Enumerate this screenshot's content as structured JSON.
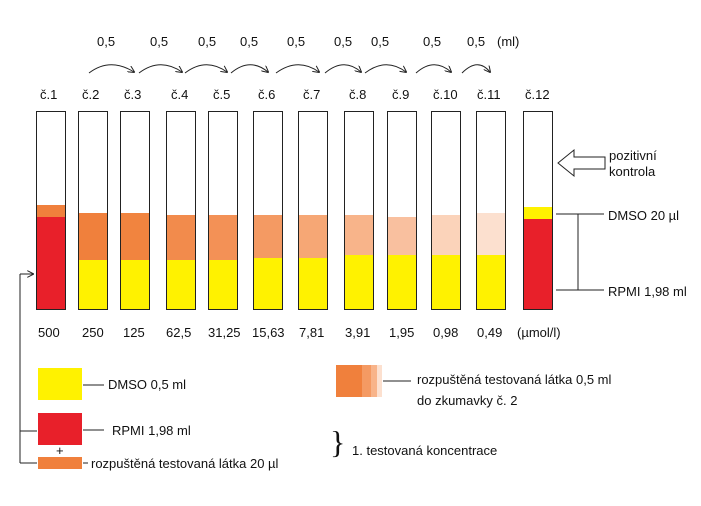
{
  "transfer": {
    "volumes": [
      "0,5",
      "0,5",
      "0,5",
      "0,5",
      "0,5",
      "0,5",
      "0,5",
      "0,5",
      "0,5"
    ],
    "unit": "(ml)"
  },
  "tubes": [
    {
      "label": "č.1",
      "concentration": "500"
    },
    {
      "label": "č.2",
      "concentration": "250"
    },
    {
      "label": "č.3",
      "concentration": "125"
    },
    {
      "label": "č.4",
      "concentration": "62,5"
    },
    {
      "label": "č.5",
      "concentration": "31,25"
    },
    {
      "label": "č.6",
      "concentration": "15,63"
    },
    {
      "label": "č.7",
      "concentration": "7,81"
    },
    {
      "label": "č.8",
      "concentration": "3,91"
    },
    {
      "label": "č.9",
      "concentration": "1,95"
    },
    {
      "label": "č.10",
      "concentration": "0,98"
    },
    {
      "label": "č.11",
      "concentration": "0,49"
    },
    {
      "label": "č.12",
      "concentration": "(µmol/l)"
    }
  ],
  "annotations": {
    "positive_control_line1": "pozitivní",
    "positive_control_line2": "kontrola",
    "dmso": "DMSO 20 µl",
    "rpmi": "RPMI 1,98 ml"
  },
  "legend": {
    "dmso": "DMSO 0,5 ml",
    "rpmi": "RPMI 1,98 ml",
    "plus": "+",
    "dissolved": "rozpuštěná testovaná látka  20 µl",
    "brace": "}",
    "first_concentration": "1. testovaná koncentrace",
    "transfer_line1": "rozpuštěná testovaná látka 0,5 ml",
    "transfer_line2": "do zkumavky č. 2"
  },
  "colors": {
    "yellow": "#FFF200",
    "red": "#E8202A",
    "orange": "#F0803C"
  }
}
